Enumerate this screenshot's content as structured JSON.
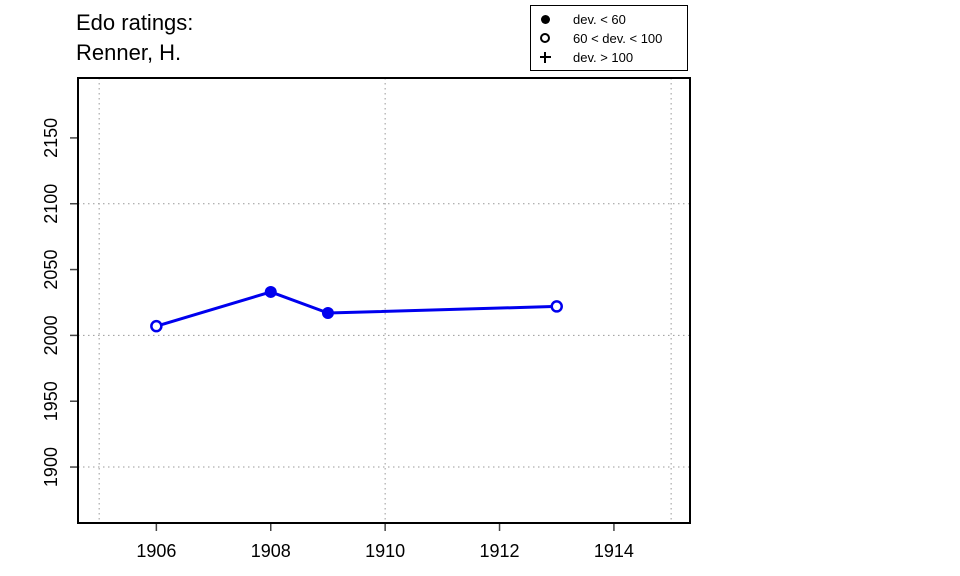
{
  "title": {
    "line1": "Edo ratings:",
    "line2": "Renner, H."
  },
  "legend": {
    "items": [
      {
        "marker": "filled-circle",
        "label": "dev. < 60"
      },
      {
        "marker": "open-circle",
        "label": "60 < dev. < 100"
      },
      {
        "marker": "plus",
        "label": "dev. > 100"
      }
    ]
  },
  "chart_data": {
    "type": "line",
    "title": "Edo ratings: Renner, H.",
    "xlabel": "",
    "ylabel": "",
    "x": [
      1906,
      1908,
      1909,
      1913
    ],
    "series": [
      {
        "name": "Edo rating",
        "values": [
          2007,
          2033,
          2017,
          2022
        ]
      }
    ],
    "points": [
      {
        "year": 1906,
        "rating": 2007,
        "marker": "open-circle",
        "dev_class": "60 < dev. < 100"
      },
      {
        "year": 1908,
        "rating": 2033,
        "marker": "filled-circle",
        "dev_class": "dev. < 60"
      },
      {
        "year": 1909,
        "rating": 2017,
        "marker": "filled-circle",
        "dev_class": "dev. < 60"
      },
      {
        "year": 1913,
        "rating": 2022,
        "marker": "open-circle",
        "dev_class": "60 < dev. < 100"
      }
    ],
    "xlim": [
      1904.63,
      1915.33
    ],
    "ylim": [
      1857.5,
      2195.5
    ],
    "x_ticks": [
      1906,
      1908,
      1910,
      1912,
      1914
    ],
    "y_ticks": [
      1900,
      1950,
      2000,
      2050,
      2100,
      2150
    ],
    "grid_x": [
      1905,
      1910,
      1915
    ],
    "grid_y": [
      1900,
      2000,
      2100
    ],
    "grid": "dotted",
    "legend_position": "top-right",
    "line_color": "#0000EE",
    "axis_color": "#000000",
    "grid_color": "#999999",
    "background_color": "#FFFFFF"
  }
}
